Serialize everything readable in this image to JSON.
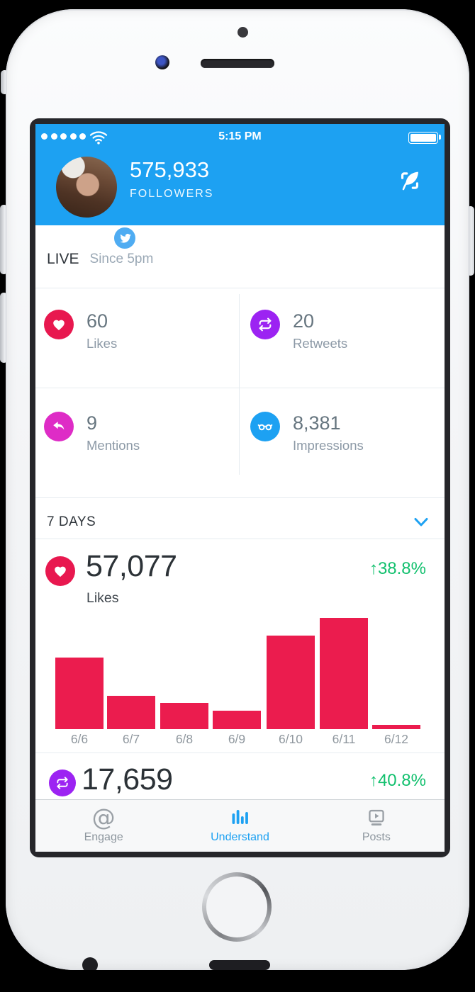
{
  "status_bar": {
    "time": "5:15 PM",
    "signal_dots": 5,
    "wifi_icon": "wifi-icon",
    "battery_icon": "battery-full-icon"
  },
  "header": {
    "followers_count": "575,933",
    "followers_label": "FOLLOWERS",
    "avatar": "profile-photo",
    "badge_icon": "twitter-bird-icon",
    "compose_icon": "compose-quill-icon"
  },
  "live": {
    "title": "LIVE",
    "subtitle": "Since 5pm"
  },
  "stats": {
    "items": [
      {
        "value": "60",
        "label": "Likes",
        "icon": "heart-icon",
        "color": "#e8184f"
      },
      {
        "value": "20",
        "label": "Retweets",
        "icon": "retweet-icon",
        "color": "#9c23f2"
      },
      {
        "value": "9",
        "label": "Mentions",
        "icon": "reply-icon",
        "color": "#de2cc6"
      },
      {
        "value": "8,381",
        "label": "Impressions",
        "icon": "glasses-icon",
        "color": "#1da1f2"
      }
    ]
  },
  "period_selector": {
    "label": "7 DAYS",
    "chevron_icon": "chevron-down-icon",
    "chevron_color": "#1da1f2"
  },
  "likes_metric": {
    "value": "57,077",
    "label": "Likes",
    "change_arrow": "↑",
    "change_value": "38.8%",
    "change_color": "#12c06e",
    "icon_color": "#e8184f"
  },
  "retweets_metric": {
    "value": "17,659",
    "change_arrow": "↑",
    "change_value": "40.8%",
    "change_color": "#12c06e",
    "icon_color": "#9c23f2"
  },
  "chart_data": {
    "type": "bar",
    "title": "Likes — 7 days",
    "categories": [
      "6/6",
      "6/7",
      "6/8",
      "6/9",
      "6/10",
      "6/11",
      "6/12"
    ],
    "values": [
      101,
      47,
      37,
      26,
      132,
      157,
      6
    ],
    "value_unit": "relative bar height (px, no y-axis shown)",
    "total": "57,077",
    "change": "+38.8%",
    "bar_color": "#eb1c4e",
    "grid": false,
    "legend": false
  },
  "tab_bar": {
    "tabs": [
      {
        "label": "Engage",
        "icon": "at-icon",
        "icon_glyph": "@",
        "active": false
      },
      {
        "label": "Understand",
        "icon": "bar-chart-icon",
        "active": true
      },
      {
        "label": "Posts",
        "icon": "posts-icon",
        "active": false
      }
    ],
    "active_color": "#1da1f2"
  },
  "colors": {
    "header_blue": "#1da1f2",
    "positive_green": "#12c06e",
    "divider": "#e6ecf0",
    "text_dark": "#2c3237",
    "text_gray": "#66757f",
    "label_gray": "#8c99a6"
  }
}
